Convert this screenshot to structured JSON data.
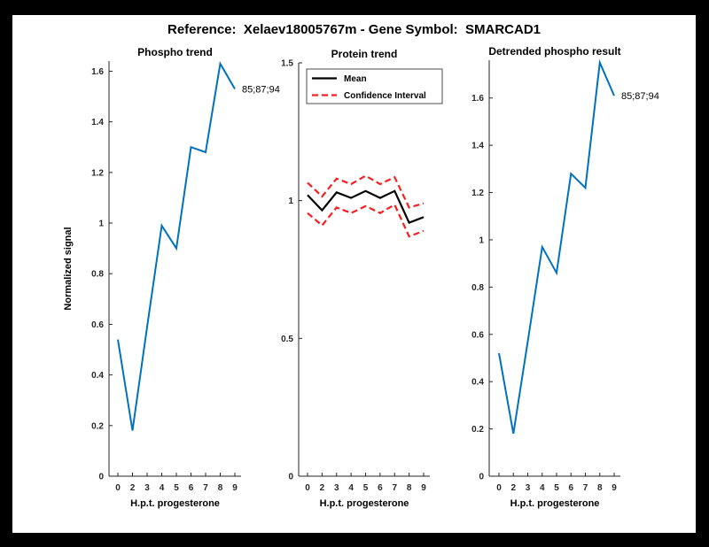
{
  "header": {
    "title": "Reference:  Xelaev18005767m - Gene Symbol:  SMARCAD1"
  },
  "colors": {
    "figure_bg": "#ffffff",
    "frame_bg": "#000000",
    "axis": "#262626",
    "blue": "#0072bd",
    "mean_black": "#000000",
    "ci_red": "#f52020"
  },
  "chart_data": [
    {
      "type": "line",
      "title": "Phospho trend",
      "xlabel": "H.p.t. progesterone",
      "ylabel": "Normalized signal",
      "categories": [
        "0",
        "2",
        "3",
        "4",
        "5",
        "6",
        "7",
        "8",
        "9"
      ],
      "series": [
        {
          "name": "Phospho signal",
          "color": "#0072bd",
          "dash": null,
          "width": 2,
          "values": [
            0.54,
            0.18,
            0.59,
            0.99,
            0.9,
            1.3,
            1.28,
            1.63,
            1.53
          ]
        }
      ],
      "ylim": [
        0,
        1.64
      ],
      "yticks": [
        0,
        0.2,
        0.4,
        0.6,
        0.8,
        1,
        1.2,
        1.4,
        1.6
      ],
      "grid": false,
      "legend": null,
      "annotation": "85;87;94"
    },
    {
      "type": "line",
      "title": "Protein trend",
      "xlabel": "H.p.t. progesterone",
      "ylabel": "",
      "categories": [
        "0",
        "2",
        "3",
        "4",
        "5",
        "6",
        "7",
        "8",
        "9"
      ],
      "series": [
        {
          "name": "Mean",
          "color": "#000000",
          "dash": null,
          "width": 2.2,
          "values": [
            1.02,
            0.965,
            1.03,
            1.01,
            1.035,
            1.01,
            1.035,
            0.92,
            0.94
          ]
        },
        {
          "name": "Confidence Interval upper",
          "color": "#f52020",
          "dash": "7,4",
          "width": 2.2,
          "values": [
            1.065,
            1.015,
            1.08,
            1.06,
            1.09,
            1.06,
            1.085,
            0.975,
            0.99
          ]
        },
        {
          "name": "Confidence Interval lower",
          "color": "#f52020",
          "dash": "7,4",
          "width": 2.2,
          "values": [
            0.955,
            0.91,
            0.975,
            0.955,
            0.98,
            0.955,
            0.985,
            0.87,
            0.89
          ]
        }
      ],
      "ylim": [
        0,
        1.5
      ],
      "yticks": [
        0,
        0.5,
        1,
        1.5
      ],
      "grid": false,
      "legend": {
        "position": "northwest-inside",
        "entries": [
          {
            "label": "Mean",
            "color": "#000000",
            "dash": null
          },
          {
            "label": "Confidence Interval",
            "color": "#f52020",
            "dash": "7,4"
          }
        ]
      },
      "annotation": null
    },
    {
      "type": "line",
      "title": "Detrended phospho result",
      "xlabel": "H.p.t. progesterone",
      "ylabel": "",
      "categories": [
        "0",
        "2",
        "3",
        "4",
        "5",
        "6",
        "7",
        "8",
        "9"
      ],
      "series": [
        {
          "name": "Detrended phospho signal",
          "color": "#0072bd",
          "dash": null,
          "width": 2,
          "values": [
            0.52,
            0.18,
            0.57,
            0.97,
            0.86,
            1.28,
            1.22,
            1.75,
            1.61
          ]
        }
      ],
      "ylim": [
        0,
        1.76
      ],
      "yticks": [
        0,
        0.2,
        0.4,
        0.6,
        0.8,
        1,
        1.2,
        1.4,
        1.6
      ],
      "grid": false,
      "legend": null,
      "annotation": "85;87;94"
    }
  ]
}
